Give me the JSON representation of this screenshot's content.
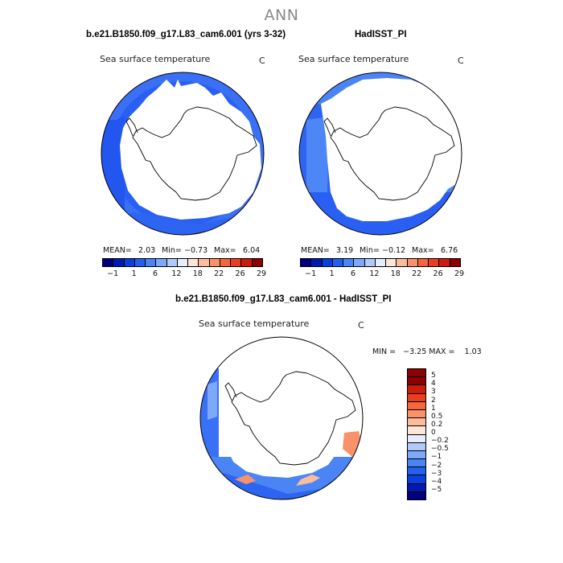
{
  "figure": {
    "title": "ANN",
    "panels": {
      "left": {
        "title": "b.e21.B1850.f09_g17.L83_cam6.001 (yrs 3-32)",
        "variable": "Sea surface temperature",
        "units": "C",
        "mean_label": "MEAN=",
        "mean": "2.03",
        "min_label": "Min=",
        "min": "−0.73",
        "max_label": "Max=",
        "max": "6.04"
      },
      "right": {
        "title": "HadISST_PI",
        "variable": "Sea surface temperature",
        "units": "C",
        "mean_label": "MEAN=",
        "mean": "3.19",
        "min_label": "Min=",
        "min": "−0.12",
        "max_label": "Max=",
        "max": "6.76"
      },
      "diff": {
        "title": "b.e21.B1850.f09_g17.L83_cam6.001 - HadISST_PI",
        "variable": "Sea surface temperature",
        "units": "C",
        "minmax_text": "MIN =   −3.25 MAX =    1.03"
      }
    },
    "abs_colorbar": {
      "colors": [
        "#00007f",
        "#0019b2",
        "#0a3fdf",
        "#2460f0",
        "#4b85f5",
        "#7ea8f8",
        "#b0cbfb",
        "#e6eefd",
        "#fde6d8",
        "#fbbc9c",
        "#f9926b",
        "#f5663f",
        "#ea3f1f",
        "#cd1c0c",
        "#8b0000"
      ],
      "tick_labels": [
        "−1",
        "1",
        "6",
        "12",
        "18",
        "22",
        "26",
        "29"
      ]
    },
    "diff_colorbar": {
      "colors": [
        "#8b0000",
        "#cd1c0c",
        "#ea3f1f",
        "#f5663f",
        "#f9926b",
        "#fbbc9c",
        "#fde6d8",
        "#e6eefd",
        "#b0cbfb",
        "#7ea8f8",
        "#4b85f5",
        "#2460f0",
        "#0a3fdf",
        "#0019b2",
        "#00007f"
      ],
      "tick_labels": [
        "5",
        "4",
        "3",
        "2",
        "1",
        "0.5",
        "0.2",
        "0",
        "−0.2",
        "−0.5",
        "−1",
        "−2",
        "−3",
        "−4",
        "−5"
      ]
    }
  }
}
